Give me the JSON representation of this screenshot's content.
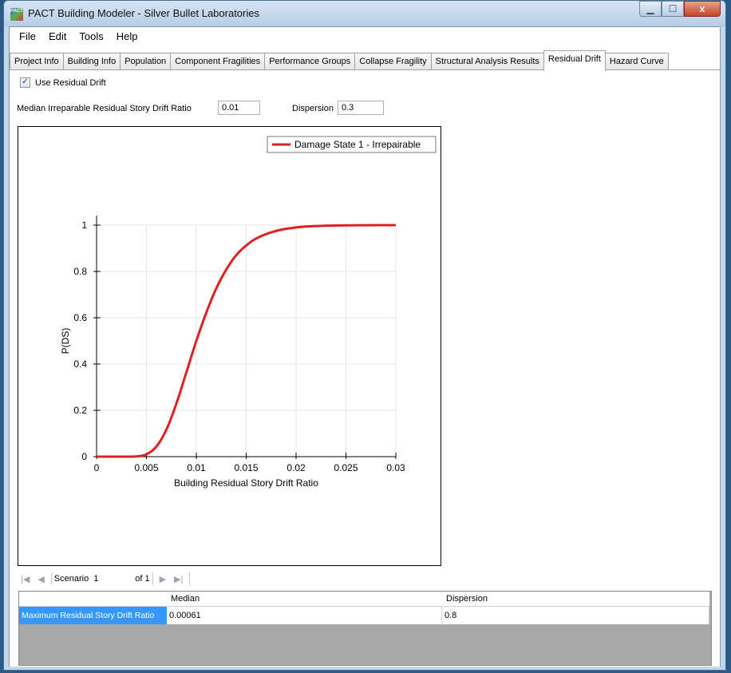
{
  "window": {
    "title": "PACT Building Modeler - Silver Bullet Laboratories",
    "icon_label": "PACT",
    "controls": {
      "minimize": "▁",
      "maximize": "☐",
      "close": "x"
    }
  },
  "menu": [
    "File",
    "Edit",
    "Tools",
    "Help"
  ],
  "tabs": [
    {
      "label": "Project Info",
      "active": false
    },
    {
      "label": "Building Info",
      "active": false
    },
    {
      "label": "Population",
      "active": false
    },
    {
      "label": "Component Fragilities",
      "active": false
    },
    {
      "label": "Performance Groups",
      "active": false
    },
    {
      "label": "Collapse Fragility",
      "active": false
    },
    {
      "label": "Structural Analysis Results",
      "active": false
    },
    {
      "label": "Residual Drift",
      "active": true
    },
    {
      "label": "Hazard Curve",
      "active": false
    }
  ],
  "residual": {
    "checkbox_label": "Use Residual Drift",
    "checked": true,
    "median_label": "Median Irreparable Residual Story Drift Ratio",
    "median_value": "0.01",
    "dispersion_label": "Dispersion",
    "dispersion_value": "0.3"
  },
  "chart_data": {
    "type": "line",
    "title": "",
    "xlabel": "Building Residual Story Drift Ratio",
    "ylabel": "P(DS)",
    "xlim": [
      0,
      0.03
    ],
    "ylim": [
      0,
      1
    ],
    "xticks": [
      "0",
      "0.005",
      "0.01",
      "0.015",
      "0.02",
      "0.025",
      "0.03"
    ],
    "yticks": [
      "0",
      "0.2",
      "0.4",
      "0.6",
      "0.8",
      "1"
    ],
    "grid": true,
    "legend_position": "top-right",
    "series": [
      {
        "name": "Damage State 1 - Irrepairable",
        "color": "#e02020",
        "x": [
          0.0,
          0.004,
          0.005,
          0.006,
          0.007,
          0.008,
          0.009,
          0.01,
          0.011,
          0.012,
          0.013,
          0.014,
          0.015,
          0.016,
          0.018,
          0.02,
          0.022,
          0.025,
          0.03
        ],
        "y": [
          0.0,
          0.001,
          0.01,
          0.044,
          0.117,
          0.229,
          0.364,
          0.5,
          0.622,
          0.727,
          0.808,
          0.87,
          0.912,
          0.942,
          0.975,
          0.99,
          0.996,
          0.999,
          1.0
        ]
      }
    ]
  },
  "scenario": {
    "label": "Scenario",
    "value": "1",
    "of_text": "of 1"
  },
  "results": {
    "columns": [
      "Median",
      "Dispersion"
    ],
    "rows": [
      {
        "label": "Maximum Residual Story Drift Ratio",
        "median": "0.00061",
        "dispersion": "0.8"
      }
    ]
  }
}
